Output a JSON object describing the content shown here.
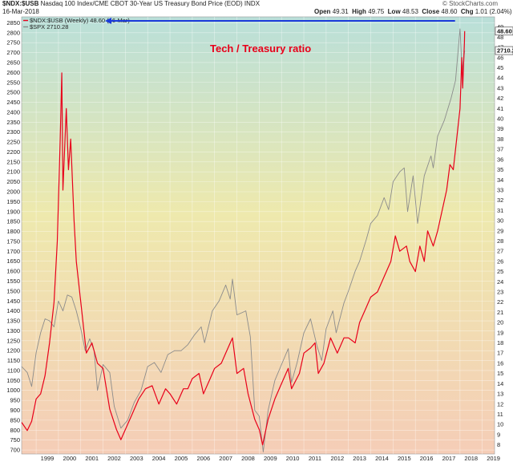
{
  "header": {
    "symbol": "$NDX:$USB",
    "description": "Nasdaq 100 Index/CME CBOT 30-Year US Treasury Bond Price (EOD) INDX",
    "date": "16-Mar-2018",
    "ohlc": [
      {
        "label": "Open",
        "value": "49.31"
      },
      {
        "label": "High",
        "value": "49.75"
      },
      {
        "label": "Low",
        "value": "48.53"
      },
      {
        "label": "Close",
        "value": "48.60"
      },
      {
        "label": "Chg",
        "value": "1.01 (2.04%)"
      }
    ],
    "credit": "© StockCharts.com"
  },
  "legend": [
    {
      "text": "$NDX:$USB (Weekly) 48.60 (16-Mar)",
      "color": "#e8001a"
    },
    {
      "text": "$SPX 2710.28",
      "color": "#8c8c8c"
    }
  ],
  "annotation": "Tech / Treasury ratio",
  "value_boxes": {
    "left": "48.60",
    "right": "2710.28"
  },
  "colors": {
    "ratio": "#e8001a",
    "spx": "#8c8c8c",
    "arrow": "#1a3adb",
    "bg_top": "#b9dfd9",
    "bg_mid": "#eee9ad",
    "bg_bottom": "#f5cdb7"
  },
  "chart_data": {
    "type": "line",
    "xlabel": "",
    "x_ticks": [
      "1999",
      "2000",
      "2001",
      "2002",
      "2003",
      "2004",
      "2005",
      "2006",
      "2007",
      "2008",
      "2009",
      "2010",
      "2011",
      "2012",
      "2013",
      "2014",
      "2015",
      "2016",
      "2017",
      "2018",
      "2019"
    ],
    "xlim": [
      1998.35,
      2019.55
    ],
    "left_axis": {
      "ticks": [
        700,
        750,
        800,
        850,
        900,
        950,
        1000,
        1050,
        1100,
        1150,
        1200,
        1250,
        1300,
        1350,
        1400,
        1450,
        1500,
        1550,
        1600,
        1650,
        1700,
        1750,
        1800,
        1850,
        1900,
        1950,
        2000,
        2050,
        2100,
        2150,
        2200,
        2250,
        2300,
        2350,
        2400,
        2450,
        2500,
        2550,
        2600,
        2650,
        2700,
        2750,
        2800,
        2850
      ],
      "range": [
        680,
        2880
      ]
    },
    "right_axis": {
      "ticks": [
        8,
        9,
        10,
        11,
        12,
        13,
        14,
        15,
        16,
        17,
        18,
        19,
        20,
        21,
        22,
        23,
        24,
        25,
        26,
        27,
        28,
        29,
        30,
        31,
        32,
        33,
        34,
        35,
        36,
        37,
        38,
        39,
        40,
        41,
        42,
        43,
        44,
        45,
        46,
        47,
        48,
        49
      ],
      "range": [
        7.1,
        50.0
      ]
    },
    "series": [
      {
        "name": "$NDX:$USB",
        "axis": "right",
        "points": [
          [
            1998.35,
            10.2
          ],
          [
            1998.6,
            9.4
          ],
          [
            1998.8,
            10.3
          ],
          [
            1999.0,
            12.5
          ],
          [
            1999.2,
            13.0
          ],
          [
            1999.4,
            14.8
          ],
          [
            1999.6,
            18.0
          ],
          [
            1999.8,
            22.0
          ],
          [
            1999.95,
            28.0
          ],
          [
            2000.08,
            38.0
          ],
          [
            2000.15,
            44.5
          ],
          [
            2000.2,
            33.0
          ],
          [
            2000.35,
            41.0
          ],
          [
            2000.45,
            35.0
          ],
          [
            2000.55,
            38.0
          ],
          [
            2000.7,
            30.0
          ],
          [
            2000.8,
            26.0
          ],
          [
            2001.0,
            22.0
          ],
          [
            2001.25,
            17.0
          ],
          [
            2001.5,
            18.0
          ],
          [
            2001.75,
            16.0
          ],
          [
            2002.0,
            15.5
          ],
          [
            2002.3,
            11.5
          ],
          [
            2002.6,
            9.5
          ],
          [
            2002.8,
            8.5
          ],
          [
            2003.0,
            9.5
          ],
          [
            2003.3,
            11.0
          ],
          [
            2003.6,
            12.5
          ],
          [
            2003.9,
            13.5
          ],
          [
            2004.2,
            13.8
          ],
          [
            2004.5,
            12.0
          ],
          [
            2004.8,
            13.5
          ],
          [
            2005.0,
            13.0
          ],
          [
            2005.3,
            12.0
          ],
          [
            2005.6,
            13.5
          ],
          [
            2005.8,
            13.5
          ],
          [
            2006.0,
            14.5
          ],
          [
            2006.3,
            15.0
          ],
          [
            2006.5,
            13.0
          ],
          [
            2006.8,
            14.5
          ],
          [
            2007.0,
            15.5
          ],
          [
            2007.3,
            16.0
          ],
          [
            2007.5,
            17.0
          ],
          [
            2007.8,
            18.5
          ],
          [
            2008.0,
            15.0
          ],
          [
            2008.3,
            15.5
          ],
          [
            2008.5,
            13.0
          ],
          [
            2008.8,
            10.5
          ],
          [
            2009.0,
            9.5
          ],
          [
            2009.15,
            8.0
          ],
          [
            2009.4,
            10.5
          ],
          [
            2009.7,
            12.5
          ],
          [
            2010.0,
            14.0
          ],
          [
            2010.3,
            15.5
          ],
          [
            2010.45,
            13.5
          ],
          [
            2010.8,
            15.0
          ],
          [
            2011.0,
            17.0
          ],
          [
            2011.3,
            17.5
          ],
          [
            2011.5,
            18.0
          ],
          [
            2011.65,
            15.0
          ],
          [
            2011.9,
            16.0
          ],
          [
            2012.2,
            18.5
          ],
          [
            2012.5,
            17.0
          ],
          [
            2012.8,
            18.5
          ],
          [
            2013.0,
            18.5
          ],
          [
            2013.3,
            18.0
          ],
          [
            2013.5,
            20.0
          ],
          [
            2013.8,
            21.5
          ],
          [
            2014.0,
            22.5
          ],
          [
            2014.3,
            23.0
          ],
          [
            2014.6,
            24.5
          ],
          [
            2014.9,
            26.0
          ],
          [
            2015.1,
            28.5
          ],
          [
            2015.3,
            27.0
          ],
          [
            2015.6,
            27.5
          ],
          [
            2015.75,
            26.0
          ],
          [
            2016.0,
            25.0
          ],
          [
            2016.2,
            27.5
          ],
          [
            2016.4,
            26.0
          ],
          [
            2016.55,
            29.0
          ],
          [
            2016.8,
            27.5
          ],
          [
            2017.0,
            29.0
          ],
          [
            2017.2,
            31.0
          ],
          [
            2017.4,
            33.0
          ],
          [
            2017.55,
            35.5
          ],
          [
            2017.7,
            35.0
          ],
          [
            2017.85,
            38.0
          ],
          [
            2018.0,
            41.0
          ],
          [
            2018.08,
            46.0
          ],
          [
            2018.12,
            43.0
          ],
          [
            2018.2,
            47.5
          ],
          [
            2018.21,
            48.6
          ]
        ]
      },
      {
        "name": "$SPX",
        "axis": "left",
        "points": [
          [
            1998.35,
            1120
          ],
          [
            1998.6,
            1090
          ],
          [
            1998.8,
            1020
          ],
          [
            1999.0,
            1190
          ],
          [
            1999.2,
            1290
          ],
          [
            1999.4,
            1360
          ],
          [
            1999.6,
            1350
          ],
          [
            1999.8,
            1320
          ],
          [
            2000.0,
            1450
          ],
          [
            2000.2,
            1400
          ],
          [
            2000.4,
            1480
          ],
          [
            2000.6,
            1470
          ],
          [
            2000.8,
            1400
          ],
          [
            2001.0,
            1310
          ],
          [
            2001.2,
            1200
          ],
          [
            2001.4,
            1260
          ],
          [
            2001.6,
            1200
          ],
          [
            2001.75,
            1000
          ],
          [
            2002.0,
            1130
          ],
          [
            2002.3,
            1090
          ],
          [
            2002.5,
            920
          ],
          [
            2002.8,
            810
          ],
          [
            2003.1,
            850
          ],
          [
            2003.4,
            940
          ],
          [
            2003.7,
            1000
          ],
          [
            2004.0,
            1120
          ],
          [
            2004.3,
            1140
          ],
          [
            2004.6,
            1090
          ],
          [
            2004.9,
            1180
          ],
          [
            2005.2,
            1200
          ],
          [
            2005.5,
            1200
          ],
          [
            2005.8,
            1230
          ],
          [
            2006.1,
            1280
          ],
          [
            2006.4,
            1320
          ],
          [
            2006.55,
            1240
          ],
          [
            2006.9,
            1400
          ],
          [
            2007.2,
            1450
          ],
          [
            2007.5,
            1530
          ],
          [
            2007.7,
            1460
          ],
          [
            2007.8,
            1560
          ],
          [
            2008.0,
            1380
          ],
          [
            2008.4,
            1400
          ],
          [
            2008.6,
            1270
          ],
          [
            2008.8,
            900
          ],
          [
            2009.0,
            870
          ],
          [
            2009.18,
            690
          ],
          [
            2009.4,
            900
          ],
          [
            2009.7,
            1050
          ],
          [
            2010.0,
            1130
          ],
          [
            2010.3,
            1210
          ],
          [
            2010.45,
            1040
          ],
          [
            2010.7,
            1140
          ],
          [
            2011.0,
            1290
          ],
          [
            2011.3,
            1360
          ],
          [
            2011.6,
            1220
          ],
          [
            2011.8,
            1150
          ],
          [
            2012.0,
            1310
          ],
          [
            2012.3,
            1400
          ],
          [
            2012.45,
            1290
          ],
          [
            2012.8,
            1440
          ],
          [
            2013.0,
            1500
          ],
          [
            2013.3,
            1600
          ],
          [
            2013.5,
            1650
          ],
          [
            2013.8,
            1760
          ],
          [
            2014.0,
            1840
          ],
          [
            2014.3,
            1880
          ],
          [
            2014.6,
            1970
          ],
          [
            2014.8,
            1910
          ],
          [
            2015.0,
            2050
          ],
          [
            2015.3,
            2100
          ],
          [
            2015.5,
            2120
          ],
          [
            2015.65,
            1900
          ],
          [
            2015.9,
            2080
          ],
          [
            2016.1,
            1840
          ],
          [
            2016.4,
            2080
          ],
          [
            2016.7,
            2180
          ],
          [
            2016.8,
            2120
          ],
          [
            2017.0,
            2280
          ],
          [
            2017.3,
            2360
          ],
          [
            2017.6,
            2470
          ],
          [
            2017.8,
            2560
          ],
          [
            2018.0,
            2820
          ],
          [
            2018.1,
            2600
          ],
          [
            2018.21,
            2710
          ]
        ]
      }
    ]
  }
}
